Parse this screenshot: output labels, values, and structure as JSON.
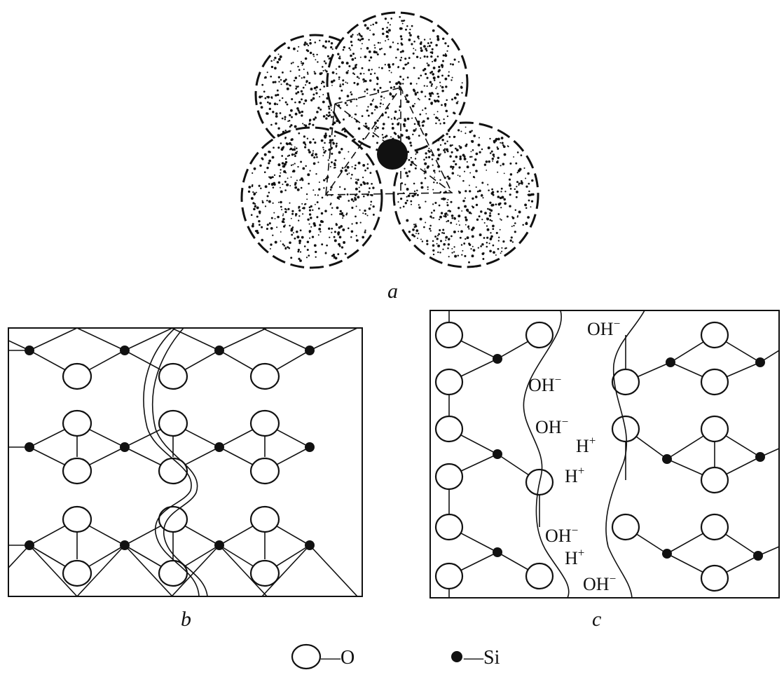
{
  "figure": {
    "panel_a": {
      "label": "a"
    },
    "panel_b": {
      "label": "b"
    },
    "panel_c": {
      "label": "c",
      "ions": [
        {
          "base": "OH",
          "charge": "−"
        },
        {
          "base": "OH",
          "charge": "−"
        },
        {
          "base": "OH",
          "charge": "−"
        },
        {
          "base": "H",
          "charge": "+"
        },
        {
          "base": "H",
          "charge": "+"
        },
        {
          "base": "OH",
          "charge": "−"
        },
        {
          "base": "H",
          "charge": "+"
        },
        {
          "base": "OH",
          "charge": "−"
        }
      ]
    },
    "legend": {
      "oxygen_label": "—O",
      "silicon_label": "—Si"
    }
  },
  "colors": {
    "ink": "#111111",
    "background": "#ffffff"
  }
}
